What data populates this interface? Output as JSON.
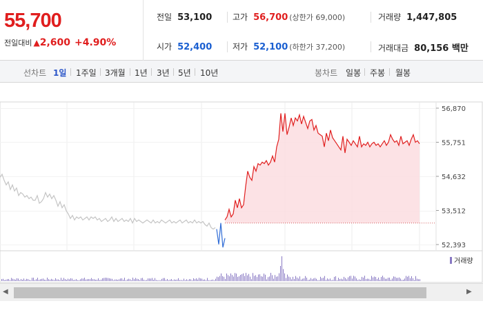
{
  "header": {
    "price": "55,700",
    "change_label": "전일대비",
    "change_arrow": "▲",
    "change_value": "2,600",
    "change_pct": "+4.90%",
    "colors": {
      "up": "#e01e1e",
      "down": "#1a5fd1"
    }
  },
  "stats": {
    "prev_close": {
      "label": "전일",
      "value": "53,100"
    },
    "high": {
      "label": "고가",
      "value": "56,700",
      "sub": "(상한가 69,000)"
    },
    "volume": {
      "label": "거래량",
      "value": "1,447,805"
    },
    "open": {
      "label": "시가",
      "value": "52,400"
    },
    "low": {
      "label": "저가",
      "value": "52,100",
      "sub": "(하한가 37,200)"
    },
    "amount": {
      "label": "거래대금",
      "value": "80,156 백만"
    }
  },
  "tabs": {
    "line_label": "선차트",
    "line_periods": [
      "1일",
      "1주일",
      "3개월",
      "1년",
      "3년",
      "5년",
      "10년"
    ],
    "active_period": "1일",
    "candle_label": "봉차트",
    "candle_periods": [
      "일봉",
      "주봉",
      "월봉"
    ]
  },
  "chart_data": {
    "type": "line",
    "y_ticks": [
      "56,870",
      "55,751",
      "54,632",
      "53,512",
      "52,393"
    ],
    "ylim": [
      52393,
      56870
    ],
    "prev_close": 53100,
    "legend": "거래량",
    "colors": {
      "prev_day": "#c4c4c4",
      "up_line": "#e01e1e",
      "up_fill": "#fbdde0",
      "open_marker": "#2e6bd6",
      "volume": "#8878c3"
    },
    "series": [
      {
        "x": [
          0,
          3,
          6,
          9,
          12,
          15,
          18,
          21,
          24,
          27,
          30,
          33,
          36,
          39,
          42,
          45,
          48,
          51,
          54,
          57,
          60,
          63,
          66,
          69,
          72,
          75,
          78,
          81,
          84,
          87,
          90,
          93,
          96,
          99,
          102,
          105,
          108,
          111,
          114,
          117,
          120,
          123,
          126,
          129,
          132,
          135,
          138,
          141,
          144,
          147,
          150,
          153,
          156,
          159,
          162,
          165,
          168,
          171,
          174,
          177,
          180,
          183,
          186,
          189,
          192,
          195,
          198,
          201,
          204,
          207,
          210,
          213,
          216,
          219,
          222,
          225,
          228,
          231,
          234,
          237,
          240,
          243,
          246,
          249,
          252,
          255,
          258,
          261,
          264,
          267,
          270,
          273,
          276,
          279,
          282,
          285,
          288,
          291,
          294,
          297,
          300,
          303,
          306,
          309,
          312
        ],
        "values": [
          54600,
          54700,
          54500,
          54350,
          54450,
          54200,
          54350,
          54150,
          54250,
          54000,
          54100,
          54050,
          53950,
          54000,
          53900,
          53950,
          53850,
          53850,
          54000,
          53750,
          53800,
          53900,
          54100,
          53950,
          54050,
          53900,
          54000,
          53850,
          53650,
          53800,
          53600,
          53700,
          53500,
          53400,
          53250,
          53350,
          53200,
          53300,
          53250,
          53300,
          53200,
          53250,
          53300,
          53200,
          53300,
          53250,
          53300,
          53200,
          53250,
          53150,
          53200,
          53250,
          53150,
          53200,
          53300,
          53150,
          53250,
          53150,
          53200,
          53250,
          53150,
          53200,
          53150,
          53250,
          53100,
          53250,
          53150,
          53200,
          53150,
          53100,
          53150,
          53200,
          53150,
          53100,
          53200,
          53100,
          53150,
          53100,
          53200,
          53150,
          53100,
          53150,
          53200,
          53100,
          53150,
          53100,
          53150,
          53200,
          53100,
          53150,
          53200,
          53100,
          53150,
          53100,
          53200,
          53100,
          53150,
          53100,
          53150,
          53050,
          53000,
          53100,
          52950,
          52900,
          52950
        ]
      },
      {
        "x": [
          314,
          317,
          320,
          323,
          326
        ],
        "values": [
          52900,
          52400,
          53100,
          52300,
          52600
        ]
      },
      {
        "x": [
          326,
          329,
          332,
          335,
          338,
          341,
          344,
          347,
          350,
          353,
          356,
          359,
          362,
          365,
          368,
          371,
          374,
          377,
          380,
          383,
          386,
          389,
          392,
          395,
          398,
          401,
          404,
          407,
          410,
          413,
          416,
          419,
          422,
          425,
          428,
          431,
          434,
          437,
          440,
          443,
          446,
          449,
          452,
          455,
          458,
          461,
          464,
          467,
          470,
          473,
          476,
          479,
          482,
          485,
          488,
          491,
          494,
          497,
          500,
          503,
          506,
          509,
          512,
          515,
          518,
          521,
          524,
          527,
          530,
          533,
          536,
          539,
          542,
          545,
          548,
          551,
          554,
          557,
          560,
          563,
          566,
          569,
          572,
          575,
          578,
          581,
          584,
          587,
          590,
          593,
          596,
          599,
          602,
          605,
          608
        ],
        "values": [
          53200,
          53300,
          53550,
          53300,
          53400,
          53850,
          53600,
          53900,
          53600,
          53700,
          54300,
          54800,
          54600,
          54500,
          54950,
          54800,
          55050,
          55000,
          55100,
          55050,
          55150,
          55000,
          55100,
          55300,
          55100,
          55600,
          55850,
          56700,
          56100,
          56700,
          56000,
          56250,
          56550,
          56300,
          56550,
          56450,
          56650,
          56350,
          56600,
          56400,
          56200,
          56450,
          56500,
          56150,
          56300,
          56050,
          56000,
          55950,
          55600,
          56050,
          55800,
          56150,
          55900,
          55800,
          55700,
          55600,
          55500,
          55950,
          55400,
          55850,
          55750,
          55650,
          55800,
          55700,
          55600,
          55950,
          55600,
          55700,
          55650,
          55750,
          55600,
          55700,
          55750,
          55650,
          55700,
          55600,
          55700,
          55800,
          55650,
          55750,
          56000,
          55850,
          55750,
          55800,
          55650,
          55950,
          55700,
          55750,
          55800,
          55650,
          55850,
          56000,
          55750,
          55800,
          55700
        ]
      }
    ]
  }
}
